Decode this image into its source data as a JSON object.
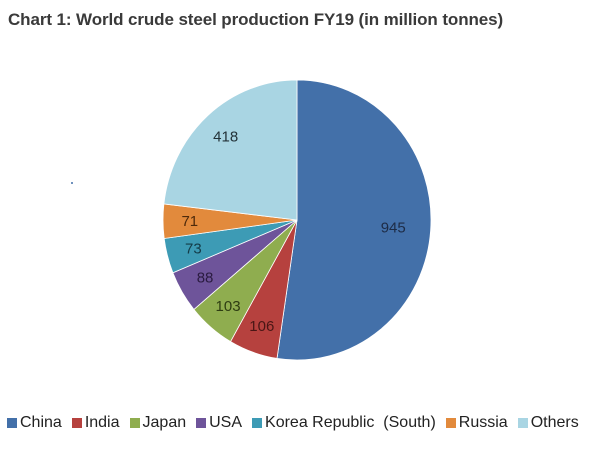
{
  "chart_data": {
    "type": "pie",
    "title": "Chart 1: World crude steel production FY19 (in million tonnes)",
    "categories": [
      "China",
      "India",
      "Japan",
      "USA",
      "Korea Republic  (South)",
      "Russia",
      "Others"
    ],
    "values": [
      945,
      106,
      103,
      88,
      73,
      71,
      418
    ],
    "colors": [
      "#4370a9",
      "#b6413e",
      "#8fad4f",
      "#6e549a",
      "#3d9bb5",
      "#e28a3c",
      "#a9d5e3"
    ],
    "label_colors": [
      "#1d2b45",
      "#4a1615",
      "#2e3d12",
      "#2a1b40",
      "#143c48",
      "#4e2a0b",
      "#233238"
    ],
    "start_angle": "top, clockwise",
    "legend": "bottom"
  }
}
